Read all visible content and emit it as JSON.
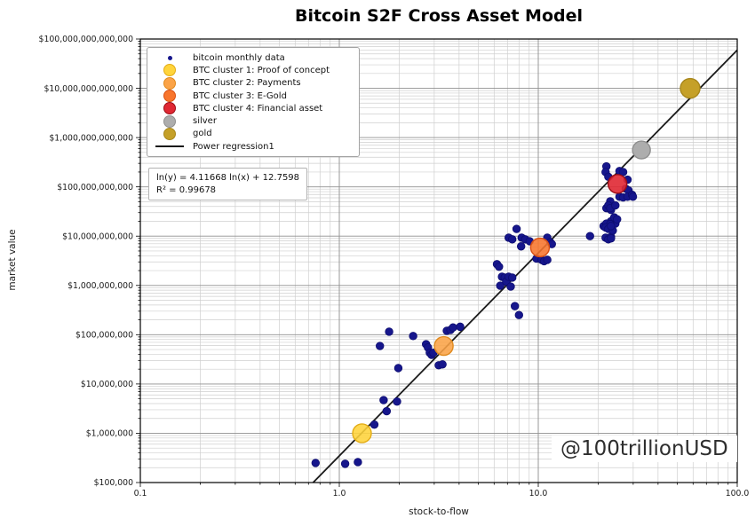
{
  "title": "Bitcoin S2F Cross Asset Model",
  "watermark": "@100trillionUSD",
  "annotation": {
    "line1": "ln(y) = 4.11668 ln(x) + 12.7598",
    "line2": "R² = 0.99678"
  },
  "legend": [
    {
      "label": "bitcoin monthly data",
      "marker": "dot",
      "color": "#16168c",
      "edge": "#0d0d70"
    },
    {
      "label": "BTC cluster 1: Proof of concept",
      "marker": "circle",
      "color": "#ffd43b",
      "edge": "#e3ac15"
    },
    {
      "label": "BTC cluster 2: Payments",
      "marker": "circle",
      "color": "#fba347",
      "edge": "#e08a1e"
    },
    {
      "label": "BTC cluster 3: E-Gold",
      "marker": "circle",
      "color": "#f8752c",
      "edge": "#d94f12"
    },
    {
      "label": "BTC cluster 4: Financial asset",
      "marker": "circle",
      "color": "#e02833",
      "edge": "#9c0d16"
    },
    {
      "label": "silver",
      "marker": "circle",
      "color": "#adadad",
      "edge": "#8f8f8f"
    },
    {
      "label": "gold",
      "marker": "circle",
      "color": "#c5a028",
      "edge": "#a8871c"
    },
    {
      "label": "Power regression1",
      "marker": "line",
      "color": "#1a1a1a"
    }
  ],
  "chart_data": {
    "type": "scatter",
    "title": "Bitcoin S2F Cross Asset Model",
    "xlabel": "stock-to-flow",
    "ylabel": "market value",
    "x_scale": "log",
    "y_scale": "log",
    "xlim": [
      0.1,
      100
    ],
    "ylim": [
      100000.0,
      100000000000000.0
    ],
    "grid": true,
    "legend_position": "upper-left",
    "x_ticks": [
      {
        "v": 0.1,
        "label": "0.1"
      },
      {
        "v": 1,
        "label": "1.0"
      },
      {
        "v": 10,
        "label": "10.0"
      },
      {
        "v": 100,
        "label": "100.0"
      }
    ],
    "y_ticks": [
      {
        "v": 100000.0,
        "label": "$100,000"
      },
      {
        "v": 1000000.0,
        "label": "$1,000,000"
      },
      {
        "v": 10000000.0,
        "label": "$10,000,000"
      },
      {
        "v": 100000000.0,
        "label": "$100,000,000"
      },
      {
        "v": 1000000000.0,
        "label": "$1,000,000,000"
      },
      {
        "v": 10000000000.0,
        "label": "$10,000,000,000"
      },
      {
        "v": 100000000000.0,
        "label": "$100,000,000,000"
      },
      {
        "v": 1000000000000.0,
        "label": "$1,000,000,000,000"
      },
      {
        "v": 10000000000000.0,
        "label": "$10,000,000,000,000"
      },
      {
        "v": 100000000000000.0,
        "label": "$100,000,000,000,000"
      }
    ],
    "regression": {
      "name": "Power regression1",
      "equation": "ln(y) = 4.11668 ln(x) + 12.7598",
      "slope": 4.11668,
      "intercept": 12.7598,
      "r2": 0.99678,
      "color": "#1a1a1a"
    },
    "series": [
      {
        "name": "bitcoin monthly data",
        "kind": "scatter",
        "color": "#16168c",
        "edge": "#0d0d70",
        "size": 4.3,
        "opacity": 1,
        "points": [
          [
            0.76,
            250000.0
          ],
          [
            1.07,
            240000.0
          ],
          [
            1.24,
            260000.0
          ],
          [
            1.5,
            1500000.0
          ],
          [
            1.73,
            2800000.0
          ],
          [
            1.67,
            4700000.0
          ],
          [
            1.95,
            4400000.0
          ],
          [
            1.98,
            21000000.0
          ],
          [
            1.6,
            59000000.0
          ],
          [
            1.78,
            115000000.0
          ],
          [
            2.35,
            94000000.0
          ],
          [
            2.73,
            64000000.0
          ],
          [
            2.79,
            55000000.0
          ],
          [
            2.85,
            43000000.0
          ],
          [
            2.91,
            39000000.0
          ],
          [
            2.97,
            43000000.0
          ],
          [
            3.16,
            24000000.0
          ],
          [
            3.3,
            25000000.0
          ],
          [
            3.47,
            120000000.0
          ],
          [
            3.62,
            125000000.0
          ],
          [
            3.73,
            140000000.0
          ],
          [
            4.05,
            145000000.0
          ],
          [
            6.2,
            2700000000.0
          ],
          [
            6.35,
            2400000000.0
          ],
          [
            6.44,
            990000000.0
          ],
          [
            6.57,
            1500000000.0
          ],
          [
            6.78,
            1440000000.0
          ],
          [
            6.9,
            1200000000.0
          ],
          [
            7.1,
            1500000000.0
          ],
          [
            7.27,
            950000000.0
          ],
          [
            7.4,
            1440000000.0
          ],
          [
            7.63,
            380000000.0
          ],
          [
            8.0,
            250000000.0
          ],
          [
            7.1,
            9300000000.0
          ],
          [
            7.4,
            8600000000.0
          ],
          [
            7.78,
            14000000000.0
          ],
          [
            8.2,
            6200000000.0
          ],
          [
            8.25,
            9300000000.0
          ],
          [
            8.6,
            8600000000.0
          ],
          [
            9.05,
            7900000000.0
          ],
          [
            9.8,
            3500000000.0
          ],
          [
            10.4,
            3300000000.0
          ],
          [
            10.7,
            3100000000.0
          ],
          [
            11.1,
            3300000000.0
          ],
          [
            11.1,
            9300000000.0
          ],
          [
            11.5,
            7500000000.0
          ],
          [
            11.7,
            6900000000.0
          ],
          [
            18.2,
            10000000000.0
          ],
          [
            21.3,
            16000000000.0
          ],
          [
            22.0,
            17500000000.0
          ],
          [
            23.2,
            20000000000.0
          ],
          [
            24.4,
            18000000000.0
          ],
          [
            21.8,
            9300000000.0
          ],
          [
            22.5,
            8600000000.0
          ],
          [
            23.2,
            9700000000.0
          ],
          [
            22.0,
            37000000000.0
          ],
          [
            23.2,
            34000000000.0
          ],
          [
            22.0,
            260000000000.0
          ],
          [
            21.8,
            200000000000.0
          ],
          [
            22.5,
            160000000000.0
          ],
          [
            25.6,
            210000000000.0
          ],
          [
            26.7,
            200000000000.0
          ],
          [
            28.1,
            140000000000.0
          ],
          [
            27.5,
            92000000000.0
          ],
          [
            28.4,
            85000000000.0
          ],
          [
            25.6,
            63000000000.0
          ],
          [
            26.7,
            61000000000.0
          ],
          [
            28.1,
            63000000000.0
          ],
          [
            29.6,
            69000000000.0
          ],
          [
            29.9,
            63000000000.0
          ],
          [
            23.0,
            51000000000.0
          ],
          [
            22.5,
            42000000000.0
          ],
          [
            23.0,
            37000000000.0
          ],
          [
            24.4,
            42000000000.0
          ],
          [
            24.1,
            24000000000.0
          ],
          [
            24.9,
            22000000000.0
          ],
          [
            22.0,
            18000000000.0
          ],
          [
            23.0,
            17500000000.0
          ],
          [
            21.8,
            15000000000.0
          ],
          [
            22.5,
            14000000000.0
          ],
          [
            23.7,
            13000000000.0
          ],
          [
            23.2,
            16000000000.0
          ],
          [
            23.2,
            9000000000.0
          ]
        ]
      },
      {
        "name": "BTC cluster 1: Proof of concept",
        "kind": "scatter",
        "color": "#ffd43b",
        "edge": "#e3ac15",
        "size": 10.5,
        "opacity": 0.88,
        "points": [
          [
            1.3,
            1000000.0
          ]
        ]
      },
      {
        "name": "BTC cluster 2: Payments",
        "kind": "scatter",
        "color": "#fba347",
        "edge": "#e08a1e",
        "size": 10.5,
        "opacity": 0.88,
        "points": [
          [
            3.35,
            59000000.0
          ]
        ]
      },
      {
        "name": "BTC cluster 3: E-Gold",
        "kind": "scatter",
        "color": "#f8752c",
        "edge": "#d94f12",
        "size": 10.5,
        "opacity": 0.88,
        "points": [
          [
            10.2,
            5900000000.0
          ]
        ]
      },
      {
        "name": "BTC cluster 4: Financial asset",
        "kind": "scatter",
        "color": "#e02833",
        "edge": "#9c0d16",
        "size": 10.5,
        "opacity": 0.9,
        "points": [
          [
            25.0,
            115000000000.0
          ]
        ]
      },
      {
        "name": "silver",
        "kind": "scatter",
        "color": "#adadad",
        "edge": "#8f8f8f",
        "size": 10,
        "opacity": 1,
        "points": [
          [
            33,
            560000000000.0
          ]
        ]
      },
      {
        "name": "gold",
        "kind": "scatter",
        "color": "#c5a028",
        "edge": "#a8871c",
        "size": 11,
        "opacity": 1,
        "points": [
          [
            58,
            10000000000000.0
          ]
        ]
      }
    ]
  }
}
